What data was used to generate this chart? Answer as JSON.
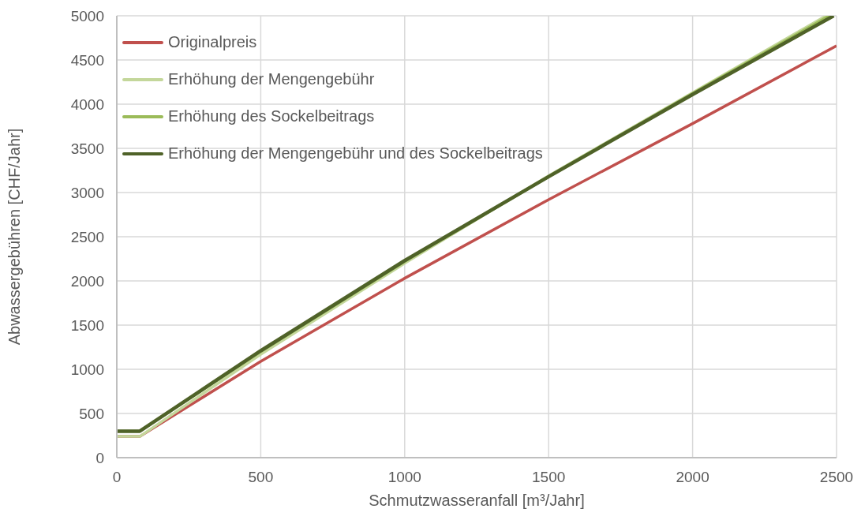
{
  "chart_data": {
    "type": "line",
    "xlabel": "Schmutzwasseranfall [m³/Jahr]",
    "ylabel": "Abwassergebühren [CHF/Jahr]",
    "series": [
      {
        "name": "Originalpreis",
        "color": "#c0504d",
        "x": [
          0,
          80,
          500,
          1000,
          1500,
          2000,
          2500
        ],
        "values": [
          240,
          240,
          1090,
          2030,
          2920,
          3780,
          4660
        ]
      },
      {
        "name": "Erhöhung der Mengengebühr",
        "color": "#c4d79b",
        "x": [
          0,
          80,
          500,
          1000,
          1500,
          2000,
          2464
        ],
        "values": [
          240,
          240,
          1170,
          2200,
          3190,
          4130,
          5000
        ]
      },
      {
        "name": "Erhöhung des Sockelbeitrags",
        "color": "#9bbb59",
        "x": [
          0,
          80,
          500,
          1000,
          1500,
          2000,
          2475
        ],
        "values": [
          300,
          300,
          1200,
          2220,
          3180,
          4120,
          5000
        ]
      },
      {
        "name": "Erhöhung der Mengengebühr und des Sockelbeitrags",
        "color": "#4f6228",
        "x": [
          0,
          80,
          500,
          1000,
          1500,
          2000,
          2490
        ],
        "values": [
          300,
          300,
          1210,
          2230,
          3180,
          4110,
          5000
        ]
      }
    ],
    "xlim": [
      0,
      2500
    ],
    "xticks": [
      0,
      500,
      1000,
      1500,
      2000,
      2500
    ],
    "ylim": [
      0,
      5000
    ],
    "yticks": [
      0,
      500,
      1000,
      1500,
      2000,
      2500,
      3000,
      3500,
      4000,
      4500,
      5000
    ],
    "grid": true,
    "legend": "top left",
    "marker": "none",
    "line_style": "solid"
  }
}
